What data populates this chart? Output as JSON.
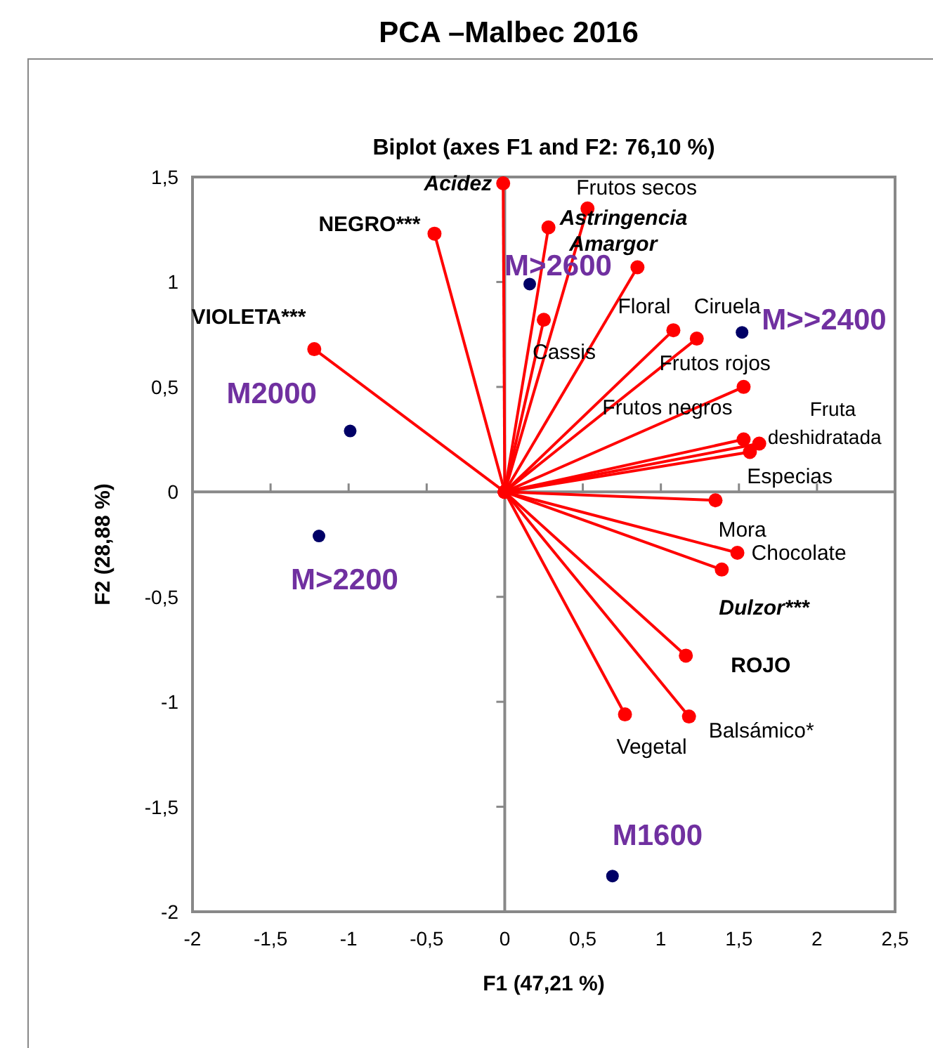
{
  "chart_data": {
    "type": "scatter",
    "title": "PCA –Malbec 2016",
    "subtitle": "Biplot (axes F1 and F2: 76,10 %)",
    "xlabel": "F1 (47,21 %)",
    "ylabel": "F2 (28,88 %)",
    "xlim": [
      -2,
      2.5
    ],
    "xticks": [
      {
        "value": -2,
        "label": "-2"
      },
      {
        "value": -1.5,
        "label": "-1,5"
      },
      {
        "value": -1,
        "label": "-1"
      },
      {
        "value": -0.5,
        "label": "-0,5"
      },
      0,
      {
        "value": 0.5,
        "label": "0,5"
      },
      1,
      {
        "value": 1.5,
        "label": "1,5"
      },
      2,
      {
        "value": 2.5,
        "label": "2,5"
      }
    ],
    "ylim": [
      -2,
      1.5
    ],
    "yticks": [
      {
        "value": -2,
        "label": "-2"
      },
      {
        "value": -1.5,
        "label": "-1,5"
      },
      {
        "value": -1,
        "label": "-1"
      },
      {
        "value": -0.5,
        "label": "-0,5"
      },
      0,
      {
        "value": 0.5,
        "label": "0,5"
      },
      1,
      {
        "value": 1.5,
        "label": "1,5"
      }
    ],
    "marker": "circle",
    "line_style": "solid",
    "series": [
      {
        "type": "line",
        "color": "#ff0000",
        "x": [
          0,
          -0.01
        ],
        "values": [
          0,
          1.47
        ],
        "value_labels": [
          null,
          "Acidez"
        ]
      },
      {
        "type": "line",
        "color": "#ff0000",
        "x": [
          0,
          0.53
        ],
        "values": [
          0,
          1.35
        ],
        "value_labels": [
          null,
          "Frutos secos"
        ]
      },
      {
        "type": "line",
        "color": "#ff0000",
        "x": [
          0,
          0.28
        ],
        "values": [
          0,
          1.26
        ],
        "value_labels": [
          null,
          "Astringencia"
        ]
      },
      {
        "type": "line",
        "color": "#ff0000",
        "x": [
          0,
          0.85
        ],
        "values": [
          0,
          1.07
        ],
        "value_labels": [
          null,
          "Amargor"
        ]
      },
      {
        "type": "line",
        "color": "#ff0000",
        "x": [
          0,
          1.08
        ],
        "values": [
          0,
          0.77
        ],
        "value_labels": [
          null,
          "Floral"
        ]
      },
      {
        "type": "line",
        "color": "#ff0000",
        "x": [
          0,
          -0.45
        ],
        "values": [
          0,
          1.23
        ],
        "value_labels": [
          null,
          "NEGRO***"
        ]
      },
      {
        "type": "line",
        "color": "#ff0000",
        "x": [
          0,
          -1.22
        ],
        "values": [
          0,
          0.68
        ],
        "value_labels": [
          null,
          "VIOLETA***"
        ]
      },
      {
        "type": "line",
        "color": "#ff0000",
        "x": [
          0,
          0.25
        ],
        "values": [
          0,
          0.82
        ],
        "value_labels": [
          null,
          "Cassis"
        ]
      },
      {
        "type": "line",
        "color": "#ff0000",
        "x": [
          0,
          1.23
        ],
        "values": [
          0,
          0.73
        ],
        "value_labels": [
          null,
          "Ciruela"
        ]
      },
      {
        "type": "line",
        "color": "#ff0000",
        "x": [
          0,
          1.53
        ],
        "values": [
          0,
          0.5
        ],
        "value_labels": [
          null,
          "Frutos rojos"
        ]
      },
      {
        "type": "line",
        "color": "#ff0000",
        "x": [
          0,
          1.53
        ],
        "values": [
          0,
          0.25
        ],
        "value_labels": [
          null,
          "Frutos negros"
        ]
      },
      {
        "type": "line",
        "color": "#ff0000",
        "x": [
          0,
          1.63
        ],
        "values": [
          0,
          0.23
        ],
        "value_labels": [
          null,
          "Fruta deshidratada"
        ]
      },
      {
        "type": "line",
        "color": "#ff0000",
        "x": [
          0,
          1.57
        ],
        "values": [
          0,
          0.19
        ],
        "value_labels": [
          null,
          "Especias"
        ]
      },
      {
        "type": "line",
        "color": "#ff0000",
        "x": [
          0,
          1.35
        ],
        "values": [
          0,
          -0.04
        ],
        "value_labels": [
          null,
          "Mora"
        ]
      },
      {
        "type": "line",
        "color": "#ff0000",
        "x": [
          0,
          1.49
        ],
        "values": [
          0,
          -0.29
        ],
        "value_labels": [
          null,
          "Chocolate"
        ]
      },
      {
        "type": "line",
        "color": "#ff0000",
        "x": [
          0,
          1.39
        ],
        "values": [
          0,
          -0.37
        ],
        "value_labels": [
          null,
          "Dulzor***"
        ]
      },
      {
        "type": "line",
        "color": "#ff0000",
        "x": [
          0,
          1.16
        ],
        "values": [
          0,
          -0.78
        ],
        "value_labels": [
          null,
          "ROJO"
        ]
      },
      {
        "type": "line",
        "color": "#ff0000",
        "x": [
          0,
          1.18
        ],
        "values": [
          0,
          -1.07
        ],
        "value_labels": [
          null,
          "Balsámico*"
        ]
      },
      {
        "type": "line",
        "color": "#ff0000",
        "x": [
          0,
          0.77
        ],
        "values": [
          0,
          -1.06
        ],
        "value_labels": [
          null,
          "Vegetal"
        ]
      },
      {
        "color": "#000066",
        "x": [
          0.16,
          1.52,
          -0.99,
          -1.19,
          0.69
        ],
        "values": [
          0.99,
          0.76,
          0.29,
          -0.21,
          -1.83
        ],
        "value_labels": [
          "M>2600",
          "M>>2400",
          "M2000",
          "M>2200",
          "M1600"
        ]
      }
    ]
  }
}
